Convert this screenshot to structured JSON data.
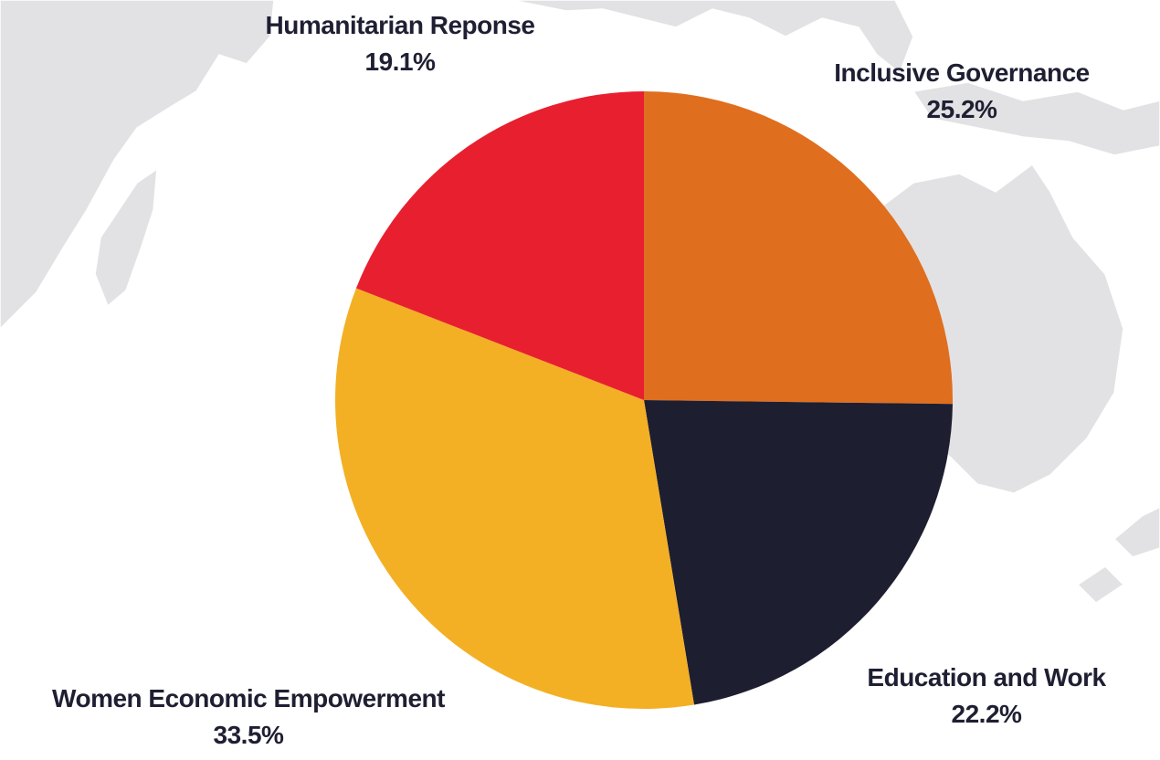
{
  "chart_data": {
    "type": "pie",
    "slices": [
      {
        "label": "Inclusive Governance",
        "value": 25.2,
        "display": "25.2%",
        "color": "#E06E1F"
      },
      {
        "label": "Education and Work",
        "value": 22.2,
        "display": "22.2%",
        "color": "#1E1E31"
      },
      {
        "label": "Women Economic Empowerment",
        "value": 33.5,
        "display": "33.5%",
        "color": "#F3B024"
      },
      {
        "label": "Humanitarian Reponse",
        "value": 19.1,
        "display": "19.1%",
        "color": "#E81F2F"
      }
    ],
    "start_angle": "12 o'clock",
    "direction": "clockwise",
    "legend": "none",
    "background_map_color": "#E2E2E4"
  }
}
